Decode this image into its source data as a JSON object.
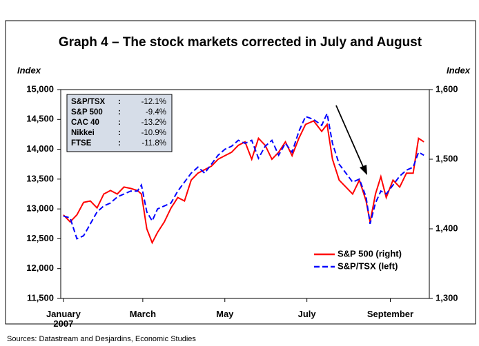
{
  "chart_data": {
    "type": "line",
    "title": "Graph 4 – The stock markets corrected in July and August",
    "ylabel": "Index",
    "y2label": "Index",
    "source": "Sources: Datastream and Desjardins, Economic Studies",
    "xlim": [
      -2,
      272
    ],
    "xticks": [
      {
        "value": 0,
        "label": "January\n2007"
      },
      {
        "value": 59,
        "label": "March"
      },
      {
        "value": 120,
        "label": "May"
      },
      {
        "value": 181,
        "label": "July"
      },
      {
        "value": 243,
        "label": "September"
      }
    ],
    "ylim": [
      11500,
      15000
    ],
    "yticks": [
      {
        "value": 11500,
        "label": "11,500"
      },
      {
        "value": 12000,
        "label": "12,000"
      },
      {
        "value": 12500,
        "label": "12,500"
      },
      {
        "value": 13000,
        "label": "13,000"
      },
      {
        "value": 13500,
        "label": "13,500"
      },
      {
        "value": 14000,
        "label": "14,000"
      },
      {
        "value": 14500,
        "label": "14,500"
      },
      {
        "value": 15000,
        "label": "15,000"
      }
    ],
    "y2lim": [
      1300,
      1600
    ],
    "y2ticks": [
      {
        "value": 1300,
        "label": "1,300"
      },
      {
        "value": 1400,
        "label": "1,400"
      },
      {
        "value": 1500,
        "label": "1,500"
      },
      {
        "value": 1600,
        "label": "1,600"
      }
    ],
    "legend": "lower right",
    "x": [
      0,
      5,
      10,
      15,
      20,
      25,
      30,
      35,
      40,
      45,
      50,
      55,
      58,
      62,
      66,
      70,
      75,
      80,
      85,
      90,
      95,
      100,
      105,
      110,
      115,
      120,
      125,
      130,
      135,
      140,
      145,
      150,
      155,
      160,
      165,
      170,
      175,
      180,
      186,
      192,
      196,
      200,
      205,
      210,
      215,
      220,
      225,
      228,
      232,
      236,
      240,
      245,
      250,
      255,
      260,
      264,
      268
    ],
    "series": [
      {
        "name": "S&P 500 (right)",
        "color": "#ff0000",
        "linestyle": "solid",
        "axis": "y2",
        "values": [
          1420,
          1410,
          1420,
          1438,
          1440,
          1430,
          1450,
          1455,
          1450,
          1460,
          1458,
          1455,
          1450,
          1400,
          1380,
          1395,
          1410,
          1430,
          1445,
          1440,
          1470,
          1480,
          1485,
          1490,
          1500,
          1505,
          1510,
          1520,
          1525,
          1500,
          1530,
          1520,
          1500,
          1510,
          1525,
          1505,
          1530,
          1550,
          1555,
          1540,
          1550,
          1500,
          1470,
          1460,
          1450,
          1470,
          1440,
          1410,
          1450,
          1475,
          1445,
          1470,
          1460,
          1480,
          1480,
          1530,
          1525
        ]
      },
      {
        "name": "S&P/TSX (left)",
        "color": "#0000ff",
        "linestyle": "dashed",
        "axis": "y",
        "values": [
          12880,
          12850,
          12500,
          12550,
          12750,
          12950,
          13050,
          13100,
          13200,
          13250,
          13300,
          13300,
          13400,
          12950,
          12800,
          13000,
          13050,
          13100,
          13300,
          13450,
          13600,
          13700,
          13600,
          13750,
          13900,
          14000,
          14050,
          14150,
          14100,
          14150,
          13850,
          14050,
          14150,
          13900,
          14100,
          13950,
          14300,
          14550,
          14500,
          14400,
          14600,
          14100,
          13750,
          13600,
          13450,
          13500,
          13200,
          12750,
          13100,
          13300,
          13250,
          13400,
          13550,
          13650,
          13700,
          13950,
          13900
        ]
      }
    ],
    "inset": [
      [
        "S&P/TSX",
        ":",
        "-12.1%"
      ],
      [
        "S&P 500",
        ":",
        "-9.4%"
      ],
      [
        "CAC 40",
        ":",
        "-13.2%"
      ],
      [
        "Nikkei",
        ":",
        "-10.9%"
      ],
      [
        "FTSE",
        ":",
        "-11.8%"
      ]
    ]
  }
}
